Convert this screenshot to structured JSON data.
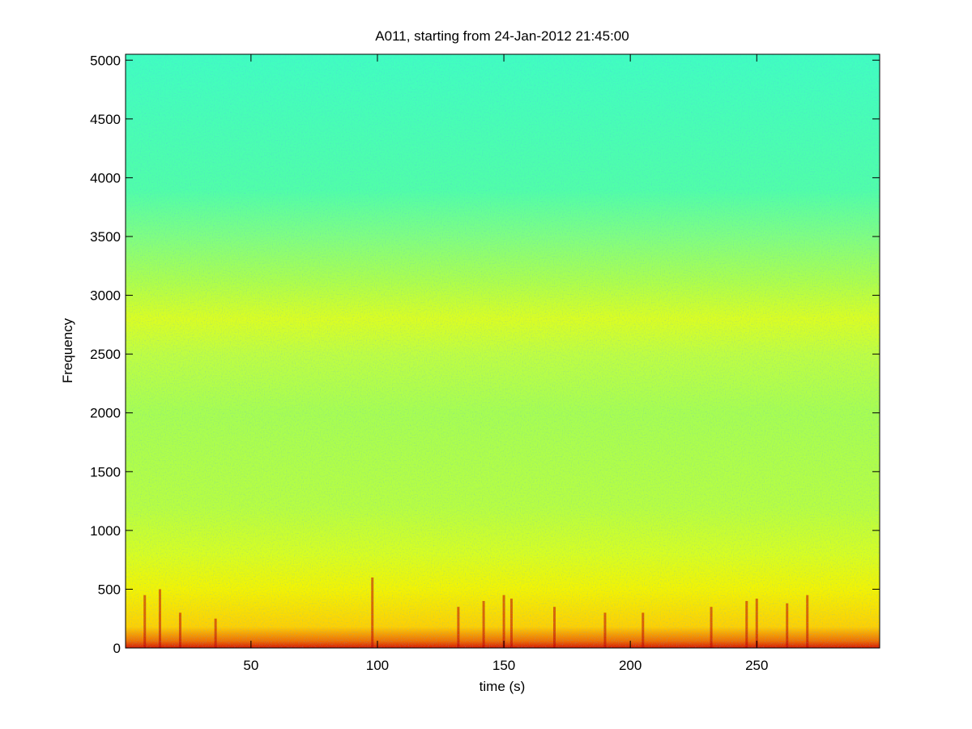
{
  "chart_data": {
    "type": "spectrogram",
    "title": "A011, starting from 24-Jan-2012 21:45:00",
    "x_label": "time (s)",
    "y_label": "Frequency",
    "xlim": [
      0.4,
      298.6
    ],
    "xticks": [
      50,
      100,
      150,
      200,
      250
    ],
    "ylim": [
      0,
      5050
    ],
    "yticks": [
      0,
      500,
      1000,
      1500,
      2000,
      2500,
      3000,
      3500,
      4000,
      4500,
      5000
    ],
    "color_profile": [
      {
        "frequency": 0,
        "color": "#d81800"
      },
      {
        "frequency": 60,
        "color": "#f07000"
      },
      {
        "frequency": 180,
        "color": "#ffd000"
      },
      {
        "frequency": 500,
        "color": "#f4f400"
      },
      {
        "frequency": 800,
        "color": "#d8ff20"
      },
      {
        "frequency": 1200,
        "color": "#b8ff40"
      },
      {
        "frequency": 2000,
        "color": "#a8ff50"
      },
      {
        "frequency": 2500,
        "color": "#c0ff40"
      },
      {
        "frequency": 2800,
        "color": "#dcff20"
      },
      {
        "frequency": 3100,
        "color": "#b0ff48"
      },
      {
        "frequency": 3500,
        "color": "#80ff80"
      },
      {
        "frequency": 3900,
        "color": "#50ffa8"
      },
      {
        "frequency": 5050,
        "color": "#40ffc0"
      }
    ],
    "bursts": {
      "times": [
        8,
        14,
        22,
        36,
        98,
        132,
        142,
        150,
        153,
        170,
        190,
        205,
        232,
        246,
        250,
        262,
        270
      ],
      "heights": [
        450,
        500,
        300,
        250,
        600,
        350,
        400,
        450,
        420,
        350,
        300,
        300,
        350,
        400,
        420,
        380,
        450
      ],
      "color": "#c00000"
    }
  }
}
